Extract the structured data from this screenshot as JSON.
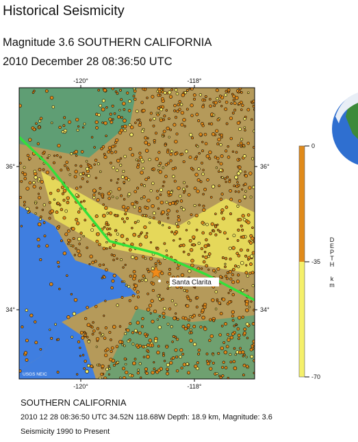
{
  "header": {
    "title": "Historical Seismicity",
    "subtitle": "Magnitude 3.6 SOUTHERN CALIFORNIA",
    "date": "2010 December 28 08:36:50 UTC"
  },
  "map": {
    "lon_labels": [
      "-120°",
      "-118°"
    ],
    "lat_labels": [
      "36°",
      "34°"
    ],
    "place_label": "Santa Clarita",
    "credit": "USGS NEIC"
  },
  "legend": {
    "title": "DEPTH",
    "unit": "km",
    "ticks": [
      0,
      -35,
      -70
    ]
  },
  "footer": {
    "region": "SOUTHERN CALIFORNIA",
    "details": "2010 12 28 08:36:50 UTC 34.52N 118.68W Depth: 18.9 km, Magnitude: 3.6",
    "range": "Seismicity 1990 to Present"
  }
}
